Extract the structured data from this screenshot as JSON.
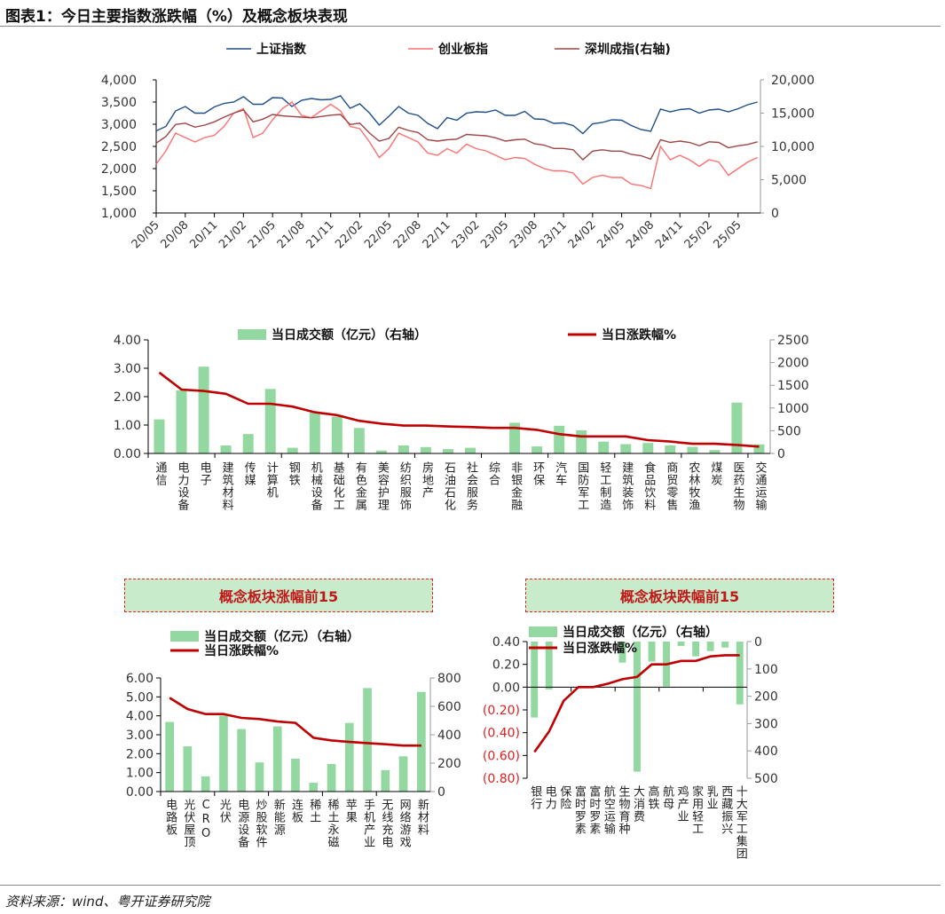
{
  "title": "图表1：今日主要指数涨跌幅（%）及概念板块表现",
  "source": "资料来源：wind、粤开证券研究院",
  "box_titles": [
    "概念板块涨幅前15",
    "概念板块跌幅前15"
  ],
  "chart_data": [
    {
      "type": "line",
      "legend": "top",
      "x": [
        "2020-05",
        "2020-06",
        "2020-07",
        "2020-08",
        "2020-09",
        "2020-10",
        "2020-11",
        "2020-12",
        "2021-01",
        "2021-02",
        "2021-03",
        "2021-04",
        "2021-05",
        "2021-06",
        "2021-07",
        "2021-08",
        "2021-09",
        "2021-10",
        "2021-11",
        "2021-12",
        "2022-01",
        "2022-02",
        "2022-03",
        "2022-04",
        "2022-05",
        "2022-06",
        "2022-07",
        "2022-08",
        "2022-09",
        "2022-10",
        "2022-11",
        "2022-12",
        "2023-01",
        "2023-02",
        "2023-03",
        "2023-04",
        "2023-05",
        "2023-06",
        "2023-07",
        "2023-08",
        "2023-09",
        "2023-10",
        "2023-11",
        "2023-12",
        "2024-01",
        "2024-02",
        "2024-03",
        "2024-04",
        "2024-05",
        "2024-06",
        "2024-07",
        "2024-08",
        "2024-09",
        "2024-10",
        "2024-11",
        "2024-12",
        "2025-01",
        "2025-02",
        "2025-03",
        "2025-04",
        "2025-05",
        "2025-06",
        "2025-07"
      ],
      "xtick_labels": [
        "20/05",
        "20/08",
        "20/11",
        "21/02",
        "21/05",
        "21/08",
        "21/11",
        "22/02",
        "22/05",
        "22/08",
        "22/11",
        "23/02",
        "23/05",
        "23/08",
        "23/11",
        "24/02",
        "24/05",
        "24/08",
        "24/11",
        "25/02",
        "25/05"
      ],
      "y_left": {
        "range": [
          1000,
          4000
        ],
        "ticks": [
          "1,000",
          "1,500",
          "2,000",
          "2,500",
          "3,000",
          "3,500",
          "4,000"
        ]
      },
      "y_right": {
        "range": [
          0,
          20000
        ],
        "ticks": [
          "0",
          "5,000",
          "10,000",
          "15,000",
          "20,000"
        ]
      },
      "series": [
        {
          "name": "上证指数",
          "axis": "left",
          "color": "#1f4e8c",
          "values": [
            2850,
            2950,
            3300,
            3400,
            3250,
            3250,
            3390,
            3470,
            3500,
            3620,
            3450,
            3450,
            3600,
            3590,
            3400,
            3540,
            3580,
            3550,
            3560,
            3640,
            3360,
            3460,
            3250,
            2980,
            3180,
            3400,
            3250,
            3200,
            3020,
            2900,
            3150,
            3090,
            3250,
            3280,
            3270,
            3320,
            3200,
            3200,
            3290,
            3120,
            3110,
            3020,
            3030,
            2970,
            2790,
            3010,
            3040,
            3100,
            3090,
            2970,
            2880,
            2840,
            3340,
            3280,
            3330,
            3350,
            3250,
            3320,
            3340,
            3280,
            3350,
            3440,
            3500
          ]
        },
        {
          "name": "创业板指",
          "axis": "left",
          "color": "#ff6f6f",
          "values": [
            2100,
            2400,
            2800,
            2700,
            2600,
            2700,
            2750,
            2950,
            3250,
            3350,
            2700,
            2800,
            3100,
            3350,
            3500,
            3200,
            3150,
            3300,
            3450,
            3300,
            2950,
            2900,
            2600,
            2250,
            2450,
            2800,
            2700,
            2600,
            2350,
            2300,
            2450,
            2350,
            2550,
            2450,
            2400,
            2300,
            2200,
            2250,
            2230,
            2100,
            2000,
            1950,
            1950,
            1900,
            1650,
            1800,
            1850,
            1800,
            1800,
            1650,
            1620,
            1550,
            2500,
            2200,
            2300,
            2200,
            2050,
            2200,
            2150,
            1850,
            2000,
            2150,
            2250
          ]
        },
        {
          "name": "深圳成指(右轴)",
          "axis": "right",
          "color": "#a04545",
          "values": [
            10500,
            11500,
            13300,
            13500,
            12900,
            13200,
            13700,
            14400,
            15000,
            15500,
            13700,
            14100,
            14800,
            14600,
            14500,
            14400,
            14300,
            14500,
            14700,
            14800,
            13300,
            13500,
            12000,
            10800,
            11200,
            12900,
            12400,
            12100,
            11000,
            10800,
            11000,
            11100,
            11800,
            11700,
            11600,
            11300,
            10800,
            11000,
            11100,
            10400,
            10200,
            9700,
            9700,
            9500,
            8000,
            9300,
            9500,
            9300,
            9300,
            8800,
            8600,
            8100,
            11000,
            10600,
            10800,
            10600,
            10100,
            10700,
            10600,
            9800,
            10100,
            10300,
            10700
          ]
        }
      ]
    },
    {
      "type": "bar+line",
      "legend": "top",
      "categories": [
        "通信",
        "电力设备",
        "电子",
        "建筑材料",
        "传媒",
        "计算机",
        "钢铁",
        "机械设备",
        "基础化工",
        "有色金属",
        "美容护理",
        "纺织服饰",
        "房地产",
        "石油石化",
        "社会服务",
        "综合",
        "非银金融",
        "环保",
        "汽车",
        "国防军工",
        "轻工制造",
        "建筑装饰",
        "食品饮料",
        "商贸零售",
        "农林牧渔",
        "煤炭",
        "医药生物",
        "交通运输"
      ],
      "y_left": {
        "range": [
          0,
          4
        ],
        "ticks": [
          "0.00",
          "1.00",
          "2.00",
          "3.00",
          "4.00"
        ]
      },
      "y_right": {
        "range": [
          0,
          2500
        ],
        "ticks": [
          "0",
          "500",
          "1000",
          "1500",
          "2000",
          "2500"
        ]
      },
      "series": [
        {
          "name": "当日成交额（亿元）（右轴）",
          "type": "bar",
          "axis": "right",
          "color": "#92d8a0",
          "values": [
            750,
            1390,
            1910,
            175,
            425,
            1420,
            125,
            900,
            810,
            560,
            65,
            175,
            140,
            95,
            125,
            0,
            675,
            155,
            610,
            510,
            260,
            205,
            230,
            175,
            145,
            75,
            1120,
            200
          ]
        },
        {
          "name": "当日涨跌幅%",
          "type": "line",
          "axis": "left",
          "color": "#c00000",
          "values": [
            2.85,
            2.25,
            2.2,
            2.1,
            1.75,
            1.75,
            1.65,
            1.45,
            1.35,
            1.15,
            1.05,
            0.98,
            0.98,
            0.95,
            0.93,
            0.9,
            0.9,
            0.83,
            0.68,
            0.6,
            0.6,
            0.6,
            0.47,
            0.42,
            0.34,
            0.34,
            0.3,
            0.24
          ]
        }
      ]
    },
    {
      "type": "bar+line",
      "title": "概念板块涨幅前15",
      "legend": "top",
      "categories": [
        "电路板",
        "光伏屋顶",
        "CRO",
        "光伏",
        "电源设备",
        "炒股软件",
        "新能源",
        "连板",
        "稀土",
        "稀土永磁",
        "苹果",
        "手机产业",
        "无线充电",
        "网络游戏",
        "新材料"
      ],
      "y_left": {
        "range": [
          0,
          6
        ],
        "ticks": [
          "0.00",
          "1.00",
          "2.00",
          "3.00",
          "4.00",
          "5.00",
          "6.00"
        ]
      },
      "y_right": {
        "range": [
          0,
          800
        ],
        "ticks": [
          "0",
          "200",
          "400",
          "600",
          "800"
        ]
      },
      "series": [
        {
          "name": "当日成交额（亿元）（右轴）",
          "type": "bar",
          "axis": "right",
          "color": "#92d8a0",
          "values": [
            490,
            318,
            107,
            535,
            440,
            205,
            459,
            231,
            62,
            194,
            483,
            729,
            151,
            248,
            702
          ]
        },
        {
          "name": "当日涨跌幅%",
          "type": "line",
          "axis": "left",
          "color": "#c00000",
          "values": [
            4.95,
            4.36,
            4.09,
            4.09,
            3.89,
            3.83,
            3.7,
            3.63,
            2.84,
            2.7,
            2.62,
            2.56,
            2.5,
            2.43,
            2.43
          ]
        }
      ]
    },
    {
      "type": "bar+line",
      "title": "概念板块跌幅前15",
      "legend": "top",
      "categories": [
        "银行",
        "电力",
        "保险",
        "富时罗素",
        "富时罗素",
        "航空运输",
        "生物育种",
        "大消费",
        "高铁",
        "航母",
        "鸡产业",
        "家用轻工",
        "乳业",
        "西藏振兴",
        "十大军工集团"
      ],
      "y_left": {
        "range": [
          -0.8,
          0.4
        ],
        "ticks": [
          "(0.80)",
          "(0.60)",
          "(0.40)",
          "(0.20)",
          "0.00",
          "0.20",
          "0.40"
        ],
        "negative_color": "#e02020"
      },
      "y_right": {
        "range": [
          0,
          500
        ],
        "inverted": true,
        "ticks": [
          "0",
          "100",
          "200",
          "300",
          "400",
          "500"
        ]
      },
      "series": [
        {
          "name": "当日成交额（亿元）（右轴）",
          "type": "bar",
          "axis": "right",
          "color": "#92d8a0",
          "values": [
            278,
            175,
            null,
            null,
            null,
            null,
            77,
            476,
            73,
            164,
            16,
            54,
            35,
            22,
            230
          ]
        },
        {
          "name": "当日涨跌幅%",
          "type": "line",
          "axis": "left",
          "color": "#c00000",
          "values": [
            -0.57,
            -0.39,
            -0.12,
            0.0,
            0.0,
            0.03,
            0.07,
            0.09,
            0.2,
            0.2,
            0.23,
            0.23,
            0.27,
            0.28,
            0.28
          ]
        }
      ]
    }
  ]
}
